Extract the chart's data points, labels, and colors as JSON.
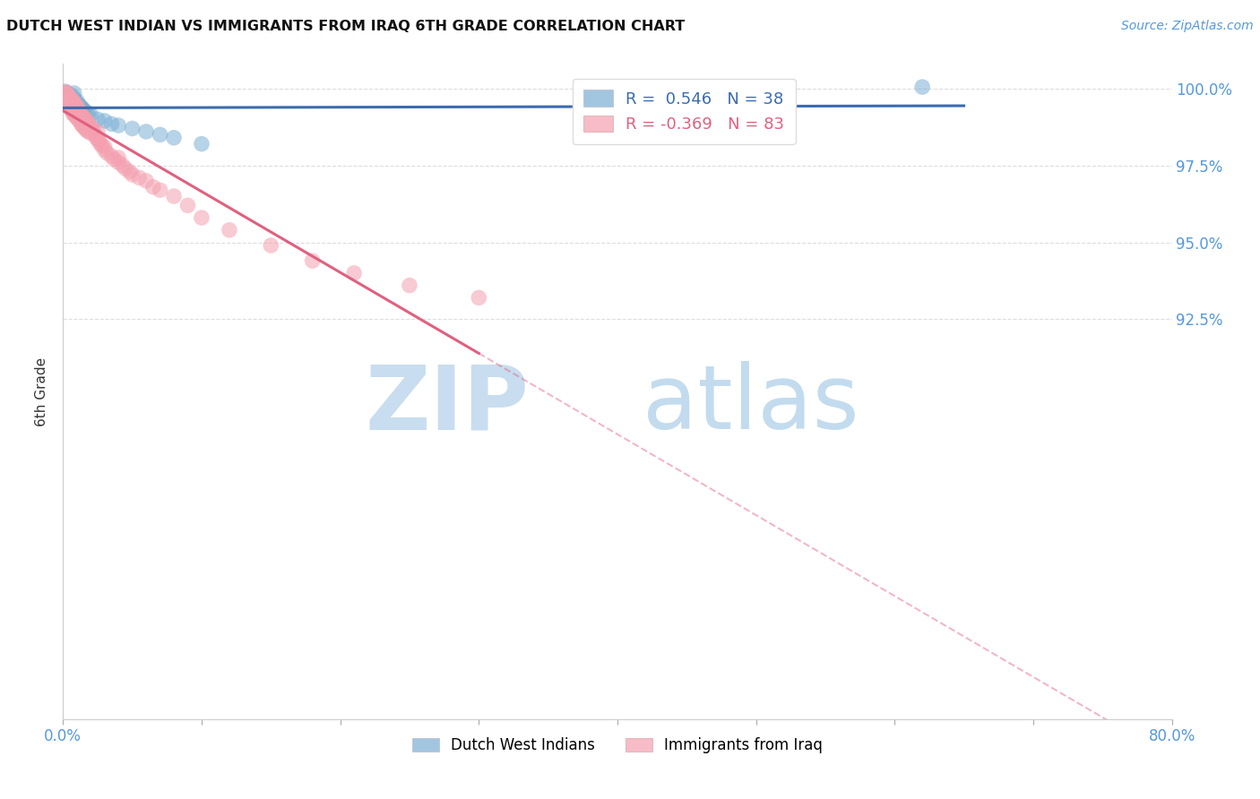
{
  "title": "DUTCH WEST INDIAN VS IMMIGRANTS FROM IRAQ 6TH GRADE CORRELATION CHART",
  "source_text": "Source: ZipAtlas.com",
  "ylabel": "6th Grade",
  "blue_R": 0.546,
  "blue_N": 38,
  "pink_R": -0.369,
  "pink_N": 83,
  "legend_label_blue": "Dutch West Indians",
  "legend_label_pink": "Immigrants from Iraq",
  "blue_color": "#7BAFD4",
  "pink_color": "#F4A0B0",
  "blue_line_color": "#3B6BAF",
  "pink_line_color": "#E06080",
  "grid_color": "#DDDDDD",
  "tick_color": "#5599DD",
  "xlim": [
    0.0,
    0.8
  ],
  "ylim": [
    0.795,
    1.008
  ],
  "y_ticks": [
    1.0,
    0.975,
    0.95,
    0.925
  ],
  "y_tick_labels": [
    "100.0%",
    "97.5%",
    "95.0%",
    "92.5%"
  ],
  "blue_x": [
    0.001,
    0.002,
    0.002,
    0.003,
    0.003,
    0.004,
    0.004,
    0.005,
    0.005,
    0.006,
    0.006,
    0.007,
    0.007,
    0.008,
    0.008,
    0.009,
    0.01,
    0.01,
    0.011,
    0.012,
    0.013,
    0.014,
    0.015,
    0.016,
    0.018,
    0.02,
    0.025,
    0.03,
    0.035,
    0.04,
    0.05,
    0.06,
    0.07,
    0.08,
    0.1,
    0.62,
    0.004,
    0.006
  ],
  "blue_y": [
    0.998,
    0.997,
    0.999,
    0.996,
    0.9985,
    0.9975,
    0.9965,
    0.998,
    0.9955,
    0.997,
    0.996,
    0.9975,
    0.995,
    0.9965,
    0.9985,
    0.9955,
    0.996,
    0.994,
    0.995,
    0.9945,
    0.994,
    0.9935,
    0.993,
    0.9925,
    0.992,
    0.9915,
    0.99,
    0.9895,
    0.9885,
    0.988,
    0.987,
    0.986,
    0.985,
    0.984,
    0.982,
    1.0005,
    0.9975,
    0.9965
  ],
  "pink_x": [
    0.001,
    0.001,
    0.002,
    0.002,
    0.003,
    0.003,
    0.004,
    0.004,
    0.004,
    0.005,
    0.005,
    0.005,
    0.006,
    0.006,
    0.006,
    0.007,
    0.007,
    0.007,
    0.008,
    0.008,
    0.008,
    0.009,
    0.009,
    0.01,
    0.01,
    0.01,
    0.011,
    0.011,
    0.012,
    0.012,
    0.013,
    0.013,
    0.014,
    0.014,
    0.015,
    0.015,
    0.016,
    0.016,
    0.017,
    0.017,
    0.018,
    0.018,
    0.019,
    0.02,
    0.02,
    0.021,
    0.022,
    0.023,
    0.024,
    0.025,
    0.025,
    0.026,
    0.027,
    0.028,
    0.03,
    0.03,
    0.032,
    0.035,
    0.037,
    0.04,
    0.04,
    0.043,
    0.045,
    0.048,
    0.05,
    0.055,
    0.06,
    0.065,
    0.07,
    0.08,
    0.09,
    0.1,
    0.12,
    0.15,
    0.18,
    0.21,
    0.25,
    0.3,
    0.003,
    0.005,
    0.007,
    0.009,
    0.011
  ],
  "pink_y": [
    0.999,
    0.9975,
    0.9985,
    0.996,
    0.998,
    0.9955,
    0.9975,
    0.995,
    0.994,
    0.997,
    0.9945,
    0.996,
    0.9965,
    0.994,
    0.993,
    0.996,
    0.9935,
    0.992,
    0.9955,
    0.993,
    0.9915,
    0.9945,
    0.991,
    0.994,
    0.992,
    0.9905,
    0.993,
    0.99,
    0.992,
    0.9895,
    0.9915,
    0.9885,
    0.991,
    0.988,
    0.9905,
    0.9875,
    0.99,
    0.987,
    0.9895,
    0.9865,
    0.989,
    0.986,
    0.988,
    0.9875,
    0.9855,
    0.987,
    0.986,
    0.985,
    0.984,
    0.9835,
    0.986,
    0.983,
    0.982,
    0.9815,
    0.98,
    0.981,
    0.979,
    0.978,
    0.977,
    0.976,
    0.9775,
    0.975,
    0.974,
    0.973,
    0.972,
    0.971,
    0.97,
    0.968,
    0.967,
    0.965,
    0.962,
    0.958,
    0.954,
    0.949,
    0.944,
    0.94,
    0.936,
    0.932,
    0.9985,
    0.997,
    0.9958,
    0.9948,
    0.9938
  ]
}
